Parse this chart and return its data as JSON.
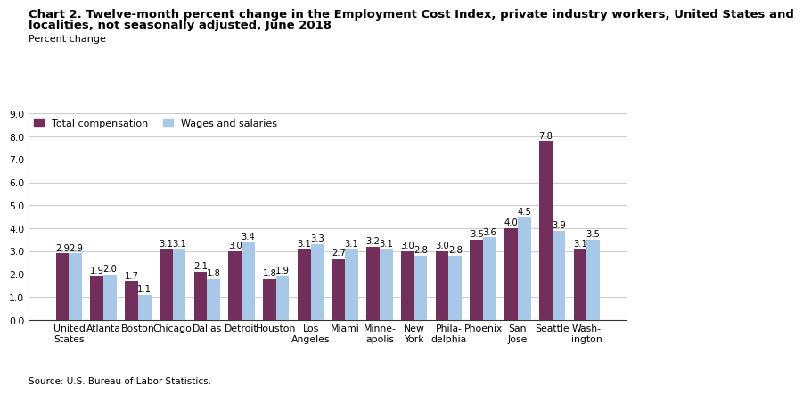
{
  "title_line1": "Chart 2. Twelve-month percent change in the Employment Cost Index, private industry workers, United States and",
  "title_line2": "localities, not seasonally adjusted, June 2018",
  "ylabel": "Percent change",
  "source": "Source: U.S. Bureau of Labor Statistics.",
  "categories": [
    "United\nStates",
    "Atlanta",
    "Boston",
    "Chicago",
    "Dallas",
    "Detroit",
    "Houston",
    "Los\nAngeles",
    "Miami",
    "Minne-\napolis",
    "New\nYork",
    "Phila-\ndelphia",
    "Phoenix",
    "San\nJose",
    "Seattle",
    "Wash-\nington"
  ],
  "total_compensation": [
    2.9,
    1.9,
    1.7,
    3.1,
    2.1,
    3.0,
    1.8,
    3.1,
    2.7,
    3.2,
    3.0,
    3.0,
    3.5,
    4.0,
    7.8,
    3.1
  ],
  "wages_salaries": [
    2.9,
    2.0,
    1.1,
    3.1,
    1.8,
    3.4,
    1.9,
    3.3,
    3.1,
    3.1,
    2.8,
    2.8,
    3.6,
    4.5,
    3.9,
    3.5
  ],
  "color_total": "#722F5B",
  "color_wages": "#A8C8E8",
  "ylim": [
    0,
    9.0
  ],
  "yticks": [
    0.0,
    1.0,
    2.0,
    3.0,
    4.0,
    5.0,
    6.0,
    7.0,
    8.0,
    9.0
  ],
  "legend_labels": [
    "Total compensation",
    "Wages and salaries"
  ],
  "bar_width": 0.38,
  "title_fontsize": 9.5,
  "label_fontsize": 8,
  "tick_fontsize": 7.8,
  "value_fontsize": 7.2
}
